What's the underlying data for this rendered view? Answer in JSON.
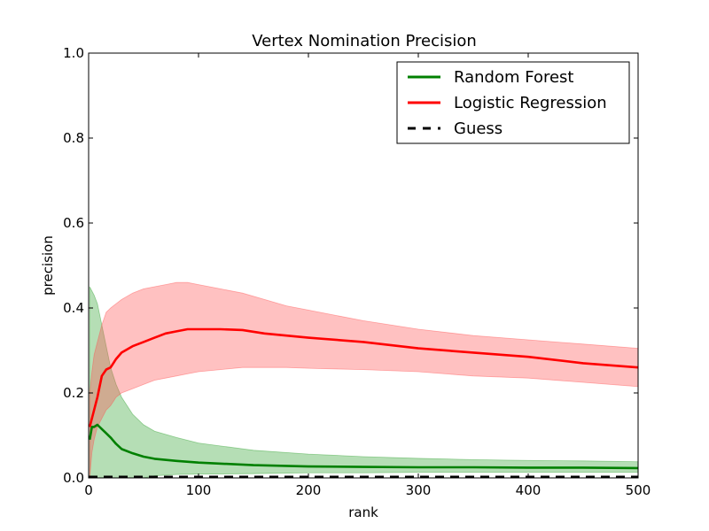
{
  "chart_data": {
    "type": "line",
    "title": "Vertex Nomination Precision",
    "xlabel": "rank",
    "ylabel": "precision",
    "xlim": [
      0,
      500
    ],
    "ylim": [
      0,
      1.0
    ],
    "xticks": [
      0,
      100,
      200,
      300,
      400,
      500
    ],
    "xtick_labels": [
      "0",
      "100",
      "200",
      "300",
      "400",
      "500"
    ],
    "yticks": [
      0,
      0.2,
      0.4,
      0.6,
      0.8,
      1.0
    ],
    "ytick_labels": [
      "0.0",
      "0.2",
      "0.4",
      "0.6",
      "0.8",
      "1.0"
    ],
    "grid": false,
    "legend_position": "top-right",
    "series": [
      {
        "name": "Random Forest",
        "color": "#008000",
        "band_color": "#2ca02c",
        "style": "solid",
        "x": [
          1,
          3,
          5,
          8,
          12,
          16,
          20,
          25,
          30,
          40,
          50,
          60,
          80,
          100,
          150,
          200,
          250,
          300,
          350,
          400,
          450,
          500
        ],
        "y": [
          0.09,
          0.12,
          0.12,
          0.125,
          0.115,
          0.105,
          0.095,
          0.08,
          0.068,
          0.058,
          0.05,
          0.045,
          0.04,
          0.036,
          0.03,
          0.027,
          0.026,
          0.025,
          0.025,
          0.024,
          0.024,
          0.023
        ],
        "upper": [
          0.45,
          0.44,
          0.43,
          0.41,
          0.36,
          0.31,
          0.26,
          0.22,
          0.19,
          0.15,
          0.125,
          0.11,
          0.095,
          0.082,
          0.065,
          0.056,
          0.05,
          0.046,
          0.043,
          0.041,
          0.04,
          0.038
        ],
        "lower": [
          0.0,
          0.0,
          0.0,
          0.0,
          0.0,
          0.0,
          0.0,
          0.0,
          0.0,
          0.0,
          0.0,
          0.005,
          0.008,
          0.009,
          0.01,
          0.012,
          0.012,
          0.013,
          0.013,
          0.013,
          0.013,
          0.013
        ]
      },
      {
        "name": "Logistic Regression",
        "color": "#ff0000",
        "band_color": "#ff4d4d",
        "style": "solid",
        "x": [
          1,
          3,
          5,
          8,
          12,
          16,
          20,
          25,
          30,
          40,
          50,
          60,
          70,
          80,
          90,
          100,
          120,
          140,
          160,
          180,
          200,
          250,
          300,
          350,
          400,
          450,
          500
        ],
        "y": [
          0.12,
          0.14,
          0.16,
          0.19,
          0.24,
          0.255,
          0.26,
          0.28,
          0.295,
          0.31,
          0.32,
          0.33,
          0.34,
          0.345,
          0.35,
          0.35,
          0.35,
          0.348,
          0.34,
          0.335,
          0.33,
          0.32,
          0.305,
          0.295,
          0.285,
          0.27,
          0.26
        ],
        "upper": [
          0.2,
          0.25,
          0.29,
          0.32,
          0.36,
          0.39,
          0.4,
          0.41,
          0.42,
          0.435,
          0.445,
          0.45,
          0.455,
          0.46,
          0.46,
          0.455,
          0.445,
          0.435,
          0.42,
          0.405,
          0.395,
          0.37,
          0.35,
          0.335,
          0.325,
          0.315,
          0.305
        ],
        "lower": [
          0.0,
          0.06,
          0.09,
          0.12,
          0.14,
          0.16,
          0.17,
          0.19,
          0.2,
          0.21,
          0.22,
          0.23,
          0.235,
          0.24,
          0.245,
          0.25,
          0.255,
          0.26,
          0.26,
          0.26,
          0.258,
          0.255,
          0.25,
          0.24,
          0.235,
          0.225,
          0.215
        ]
      },
      {
        "name": "Guess",
        "color": "#000000",
        "style": "dashed",
        "x": [
          0,
          500
        ],
        "y": [
          0.002,
          0.002
        ]
      }
    ]
  }
}
